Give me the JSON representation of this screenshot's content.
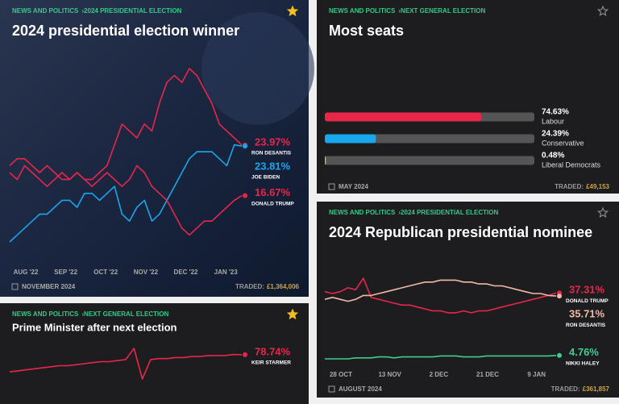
{
  "cards": [
    {
      "breadcrumb": [
        "NEWS AND POLITICS",
        "2024 PRESIDENTIAL ELECTION"
      ],
      "starred": true,
      "title": "2024 presidential election winner",
      "type": "line",
      "x_labels": [
        "AUG '22",
        "SEP '22",
        "OCT '22",
        "NOV '22",
        "DEC '22",
        "JAN '23"
      ],
      "series": [
        {
          "name": "RON DESANTIS",
          "color": "#e8264a",
          "values": [
            20,
            19,
            21,
            20,
            19,
            18,
            19,
            20,
            19,
            20,
            19,
            19,
            20,
            21,
            24,
            27,
            26,
            25,
            27,
            26,
            30,
            33,
            34,
            33,
            35,
            34,
            32,
            30,
            27,
            26,
            25,
            23.97
          ],
          "current": {
            "value": 23.97,
            "label": "23.97%"
          }
        },
        {
          "name": "JOE BIDEN",
          "color": "#1aa7ec",
          "values": [
            10,
            11,
            12,
            13,
            14,
            14,
            15,
            16,
            16,
            15,
            17,
            17,
            16,
            17,
            18,
            14,
            13,
            15,
            16,
            13,
            14,
            16,
            18,
            20,
            22,
            23,
            23,
            23,
            22,
            21,
            24,
            23.81
          ],
          "current": {
            "value": 23.81,
            "label": "23.81%"
          }
        },
        {
          "name": "DONALD TRUMP",
          "color": "#e8264a",
          "values": [
            21,
            22,
            22,
            21,
            20,
            21,
            20,
            19,
            19,
            20,
            19,
            18,
            19,
            20,
            19,
            18,
            19,
            21,
            20,
            18,
            17,
            16,
            14,
            12,
            11,
            12,
            13,
            13,
            14,
            15,
            16,
            16.67
          ],
          "current": {
            "value": 16.67,
            "label": "16.67%"
          }
        }
      ],
      "footer": {
        "date": "NOVEMBER 2024",
        "traded_label": "TRADED:",
        "traded": "£1,364,006"
      }
    },
    {
      "breadcrumb": [
        "NEWS AND POLITICS",
        "NEXT GENERAL ELECTION"
      ],
      "starred": false,
      "title": "Most seats",
      "type": "bar",
      "categories": [
        "Labour",
        "Conservative",
        "Liberal Democrats"
      ],
      "values": [
        74.63,
        24.39,
        0.48
      ],
      "value_labels": [
        "74.63%",
        "24.39%",
        "0.48%"
      ],
      "colors": [
        "#e8264a",
        "#1aa7ec",
        "#f0c020"
      ],
      "xlim": [
        0,
        100
      ],
      "footer": {
        "date": "MAY 2024",
        "traded_label": "TRADED:",
        "traded": "£49,153"
      }
    },
    {
      "breadcrumb": [
        "NEWS AND POLITICS",
        "NEXT GENERAL ELECTION"
      ],
      "starred": true,
      "title": "Prime Minister after next election",
      "type": "line",
      "series": [
        {
          "name": "KEIR STARMER",
          "color": "#e8264a",
          "values": [
            62,
            63,
            64,
            65,
            66,
            67,
            68,
            68,
            69,
            70,
            71,
            72,
            72,
            73,
            74,
            85,
            55,
            74,
            75,
            75,
            76,
            76,
            77,
            77,
            78,
            78,
            78,
            79,
            78.74
          ],
          "current": {
            "value": 78.74,
            "label": "78.74%"
          }
        }
      ]
    },
    {
      "breadcrumb": [
        "NEWS AND POLITICS",
        "2024 PRESIDENTIAL ELECTION"
      ],
      "starred": false,
      "title": "2024 Republican presidential nominee",
      "type": "line",
      "x_labels": [
        "28 OCT",
        "13 NOV",
        "2 DEC",
        "21 DEC",
        "9 JAN"
      ],
      "series": [
        {
          "name": "DONALD TRUMP",
          "color": "#e8264a",
          "values": [
            38,
            37,
            38,
            40,
            39,
            45,
            35,
            34,
            33,
            32,
            31,
            31,
            30,
            29,
            28,
            28,
            27,
            27,
            28,
            27,
            28,
            28,
            29,
            30,
            31,
            32,
            33,
            34,
            35,
            36,
            37.31
          ],
          "current": {
            "value": 37.31,
            "label": "37.31%"
          }
        },
        {
          "name": "RON DESANTIS",
          "color": "#f2b8a8",
          "values": [
            34,
            35,
            34,
            33,
            34,
            36,
            36,
            37,
            38,
            39,
            40,
            41,
            42,
            43,
            43,
            44,
            44,
            44,
            43,
            43,
            42,
            42,
            41,
            41,
            40,
            39,
            38,
            37,
            37,
            36,
            35.71
          ],
          "current": {
            "value": 35.71,
            "label": "35.71%"
          }
        },
        {
          "name": "NIKKI HALEY",
          "color": "#3ecf8e",
          "values": [
            3,
            3,
            3,
            3,
            3.5,
            3.5,
            3.5,
            4,
            4,
            3.5,
            4,
            4,
            4,
            4,
            4,
            4.5,
            4.5,
            4.5,
            4,
            4,
            4,
            4.5,
            4.5,
            4.5,
            4.5,
            4.5,
            4.5,
            4.5,
            4.5,
            4.5,
            4.76
          ],
          "current": {
            "value": 4.76,
            "label": "4.76%"
          }
        }
      ],
      "footer": {
        "date": "AUGUST 2024",
        "traded_label": "TRADED:",
        "traded": "£361,857"
      }
    }
  ]
}
